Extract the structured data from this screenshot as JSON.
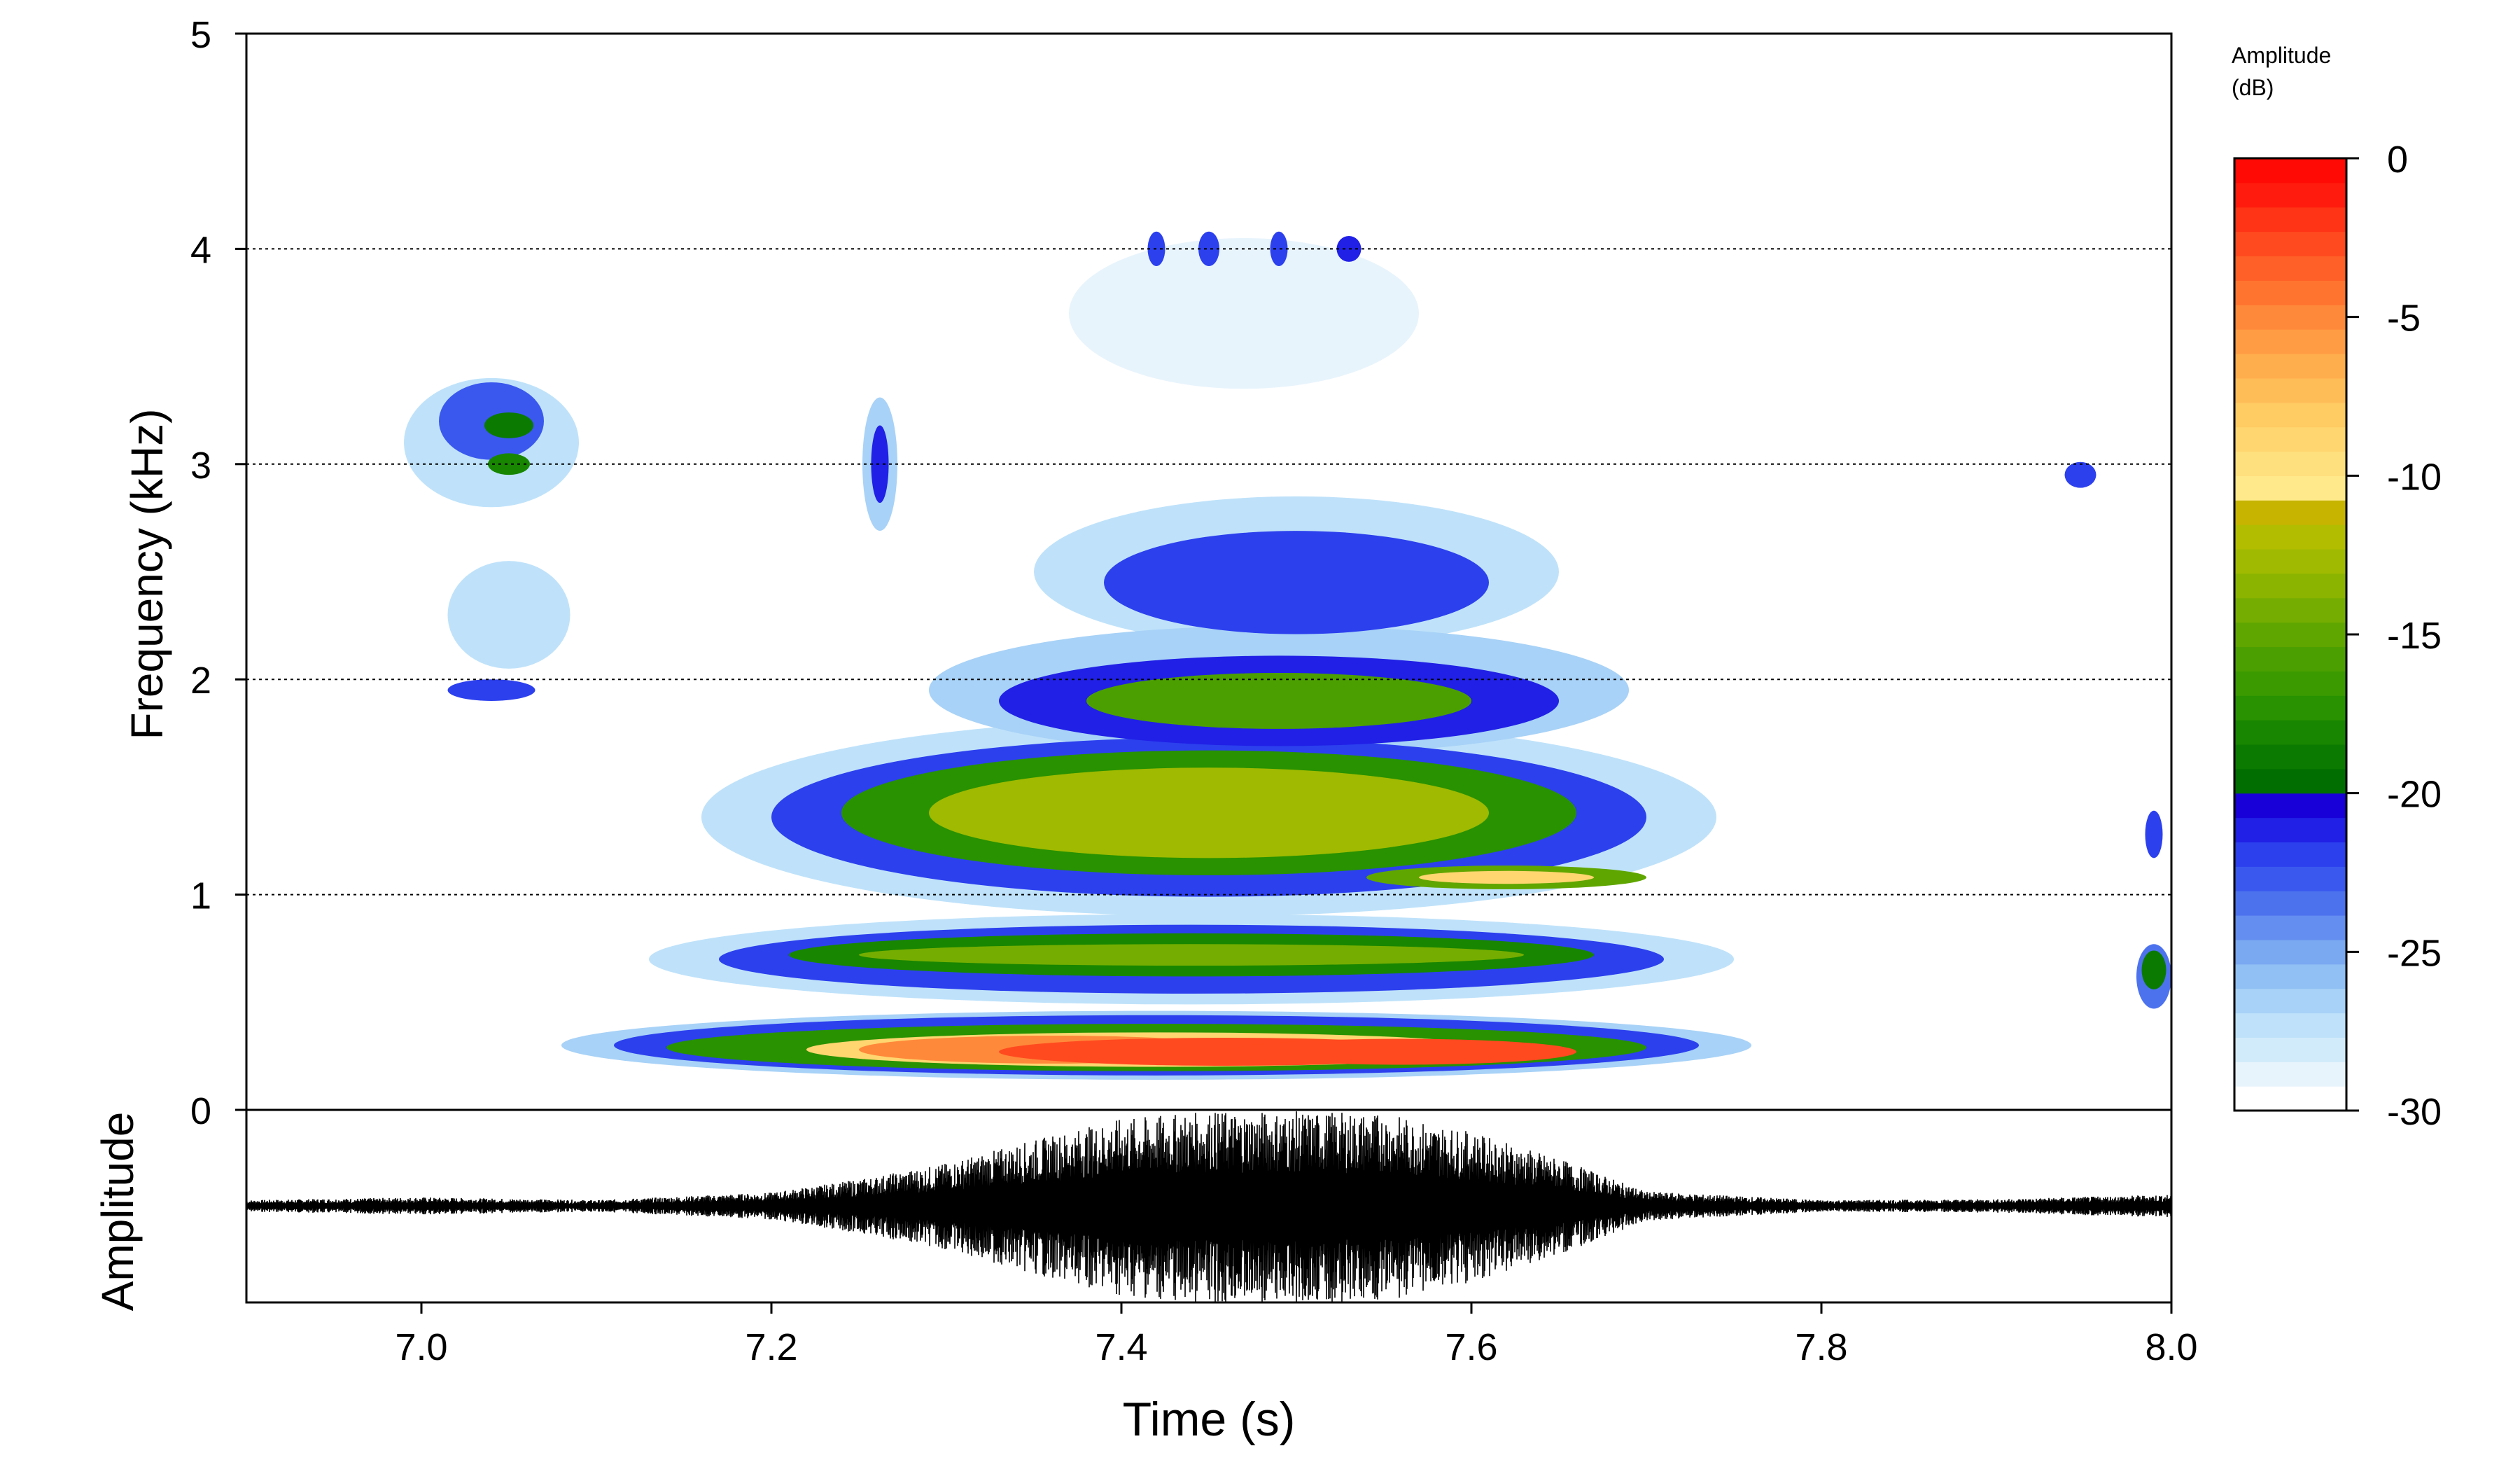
{
  "chart_data": [
    {
      "type": "heatmap",
      "panel": "spectrogram",
      "ylabel": "Frequency (kHz)",
      "xlim": [
        6.9,
        8.0
      ],
      "ylim": [
        0,
        5
      ],
      "y_ticks": [
        0,
        1,
        2,
        3,
        4,
        5
      ],
      "grid": "horizontal dotted at 1, 2, 3, 4 kHz",
      "colorbar": {
        "title_line1": "Amplitude",
        "title_line2": "(dB)",
        "range": [
          -30,
          0
        ],
        "ticks": [
          0,
          -5,
          -10,
          -15,
          -20,
          -25,
          -30
        ],
        "colors": [
          "#ffffff",
          "#e8f4fc",
          "#d2ebfb",
          "#bfe2fa",
          "#a8d2f7",
          "#90c0f4",
          "#7aa8f1",
          "#648ef0",
          "#4d72ee",
          "#3a58ee",
          "#2c40ee",
          "#2020e6",
          "#1800d8",
          "#006e00",
          "#0b7a00",
          "#188600",
          "#289200",
          "#3a9a00",
          "#4c9f00",
          "#60a600",
          "#75ae00",
          "#8ab400",
          "#9fba00",
          "#b2bd00",
          "#c6b400",
          "#ffe98a",
          "#ffe07e",
          "#ffd670",
          "#ffcb63",
          "#ffbd58",
          "#ffae4d",
          "#ff9c44",
          "#ff893a",
          "#ff7530",
          "#ff6027",
          "#ff4a1f",
          "#ff3316",
          "#ff1c0e",
          "#ff0a05"
        ]
      },
      "energy_regions": [
        {
          "t": 7.46,
          "f": 0.27,
          "dt": 0.26,
          "df": 0.13,
          "db": -2
        },
        {
          "t": 7.56,
          "f": 0.27,
          "dt": 0.2,
          "df": 0.12,
          "db": -2
        },
        {
          "t": 7.36,
          "f": 0.28,
          "dt": 0.22,
          "df": 0.13,
          "db": -5
        },
        {
          "t": 7.42,
          "f": 0.28,
          "dt": 0.4,
          "df": 0.16,
          "db": -9
        },
        {
          "t": 7.42,
          "f": 0.29,
          "dt": 0.56,
          "df": 0.22,
          "db": -17
        },
        {
          "t": 7.42,
          "f": 0.3,
          "dt": 0.62,
          "df": 0.28,
          "db": -22
        },
        {
          "t": 7.42,
          "f": 0.3,
          "dt": 0.68,
          "df": 0.32,
          "db": -27
        },
        {
          "t": 7.44,
          "f": 0.72,
          "dt": 0.38,
          "df": 0.1,
          "db": -14
        },
        {
          "t": 7.44,
          "f": 0.72,
          "dt": 0.46,
          "df": 0.2,
          "db": -18
        },
        {
          "t": 7.44,
          "f": 0.7,
          "dt": 0.54,
          "df": 0.32,
          "db": -22
        },
        {
          "t": 7.44,
          "f": 0.7,
          "dt": 0.62,
          "df": 0.42,
          "db": -28
        },
        {
          "t": 7.62,
          "f": 1.08,
          "dt": 0.1,
          "df": 0.06,
          "db": -9
        },
        {
          "t": 7.62,
          "f": 1.08,
          "dt": 0.16,
          "df": 0.11,
          "db": -15
        },
        {
          "t": 7.45,
          "f": 1.38,
          "dt": 0.32,
          "df": 0.42,
          "db": -13
        },
        {
          "t": 7.45,
          "f": 1.38,
          "dt": 0.42,
          "df": 0.58,
          "db": -17
        },
        {
          "t": 7.45,
          "f": 1.36,
          "dt": 0.5,
          "df": 0.74,
          "db": -22
        },
        {
          "t": 7.45,
          "f": 1.36,
          "dt": 0.58,
          "df": 0.92,
          "db": -28
        },
        {
          "t": 7.49,
          "f": 1.9,
          "dt": 0.22,
          "df": 0.26,
          "db": -16
        },
        {
          "t": 7.49,
          "f": 1.9,
          "dt": 0.32,
          "df": 0.42,
          "db": -21
        },
        {
          "t": 7.49,
          "f": 1.95,
          "dt": 0.4,
          "df": 0.6,
          "db": -27
        },
        {
          "t": 7.5,
          "f": 2.45,
          "dt": 0.22,
          "df": 0.48,
          "db": -22
        },
        {
          "t": 7.5,
          "f": 2.5,
          "dt": 0.3,
          "df": 0.7,
          "db": -28
        },
        {
          "t": 7.42,
          "f": 4.0,
          "dt": 0.01,
          "df": 0.16,
          "db": -22
        },
        {
          "t": 7.45,
          "f": 4.0,
          "dt": 0.012,
          "df": 0.16,
          "db": -22
        },
        {
          "t": 7.49,
          "f": 4.0,
          "dt": 0.01,
          "df": 0.16,
          "db": -22
        },
        {
          "t": 7.53,
          "f": 4.0,
          "dt": 0.014,
          "df": 0.12,
          "db": -21
        },
        {
          "t": 7.47,
          "f": 3.7,
          "dt": 0.2,
          "df": 0.7,
          "db": -29
        },
        {
          "t": 7.05,
          "f": 3.18,
          "dt": 0.028,
          "df": 0.12,
          "db": -19
        },
        {
          "t": 7.05,
          "f": 3.0,
          "dt": 0.024,
          "df": 0.1,
          "db": -18
        },
        {
          "t": 7.04,
          "f": 3.2,
          "dt": 0.06,
          "df": 0.36,
          "db": -23
        },
        {
          "t": 7.04,
          "f": 3.1,
          "dt": 0.1,
          "df": 0.6,
          "db": -28
        },
        {
          "t": 7.04,
          "f": 1.95,
          "dt": 0.05,
          "df": 0.1,
          "db": -22
        },
        {
          "t": 7.05,
          "f": 2.3,
          "dt": 0.07,
          "df": 0.5,
          "db": -28
        },
        {
          "t": 7.262,
          "f": 3.0,
          "dt": 0.01,
          "df": 0.36,
          "db": -21
        },
        {
          "t": 7.262,
          "f": 3.0,
          "dt": 0.02,
          "df": 0.62,
          "db": -27
        },
        {
          "t": 7.948,
          "f": 2.95,
          "dt": 0.018,
          "df": 0.12,
          "db": -22
        },
        {
          "t": 7.99,
          "f": 0.65,
          "dt": 0.014,
          "df": 0.18,
          "db": -19
        },
        {
          "t": 7.99,
          "f": 0.62,
          "dt": 0.02,
          "df": 0.3,
          "db": -24
        },
        {
          "t": 7.99,
          "f": 1.28,
          "dt": 0.01,
          "df": 0.22,
          "db": -22
        }
      ]
    },
    {
      "type": "line",
      "panel": "oscillogram",
      "xlabel": "Time (s)",
      "ylabel": "Amplitude",
      "xlim": [
        6.9,
        8.0
      ],
      "x_ticks": [
        "7.0",
        "7.2",
        "7.4",
        "7.6",
        "7.8",
        "8.0"
      ],
      "envelope": {
        "t": [
          6.9,
          7.0,
          7.1,
          7.2,
          7.25,
          7.3,
          7.35,
          7.4,
          7.45,
          7.5,
          7.55,
          7.6,
          7.65,
          7.7,
          7.8,
          7.9,
          8.0
        ],
        "a": [
          0.06,
          0.09,
          0.06,
          0.14,
          0.28,
          0.45,
          0.7,
          0.92,
          1.0,
          1.0,
          0.98,
          0.78,
          0.5,
          0.15,
          0.06,
          0.07,
          0.12
        ]
      }
    }
  ]
}
